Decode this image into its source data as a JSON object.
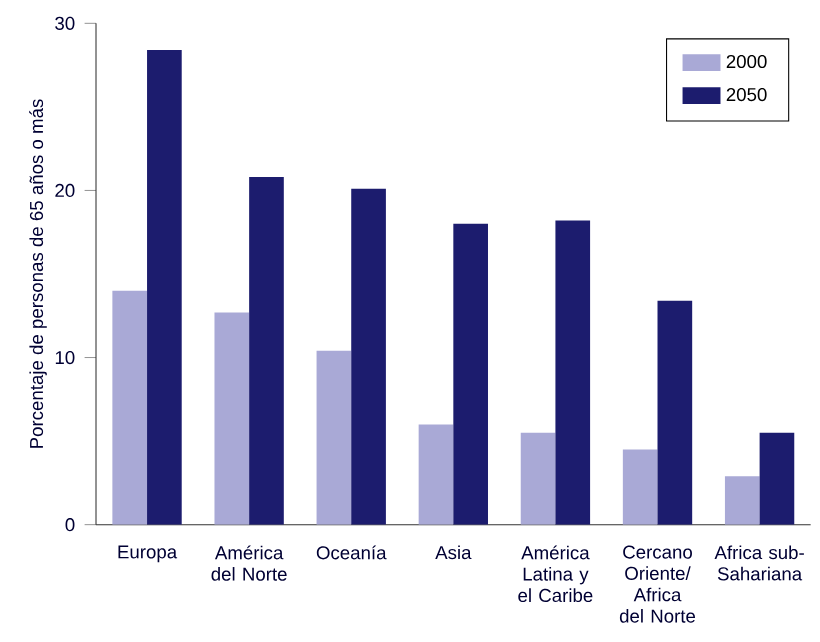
{
  "chart_data": {
    "type": "bar",
    "ylabel": "Porcentaje de personas de 65 años o más",
    "categories": [
      "Europa",
      "América del Norte",
      "Oceanía",
      "Asia",
      "América Latina y el Caribe",
      "Cercano Oriente/ Africa del Norte",
      "Africa sub-Sahariana"
    ],
    "series": [
      {
        "name": "2000",
        "color": "#a9a9d6",
        "values": [
          14.0,
          12.7,
          10.4,
          6.0,
          5.5,
          4.5,
          2.9
        ]
      },
      {
        "name": "2050",
        "color": "#1c1c6e",
        "values": [
          28.4,
          20.8,
          20.1,
          18.0,
          18.2,
          13.4,
          5.5
        ]
      }
    ],
    "ylim": [
      0,
      30
    ],
    "yticks": [
      0,
      10,
      20,
      30
    ],
    "grid": false,
    "legend": "top right"
  }
}
